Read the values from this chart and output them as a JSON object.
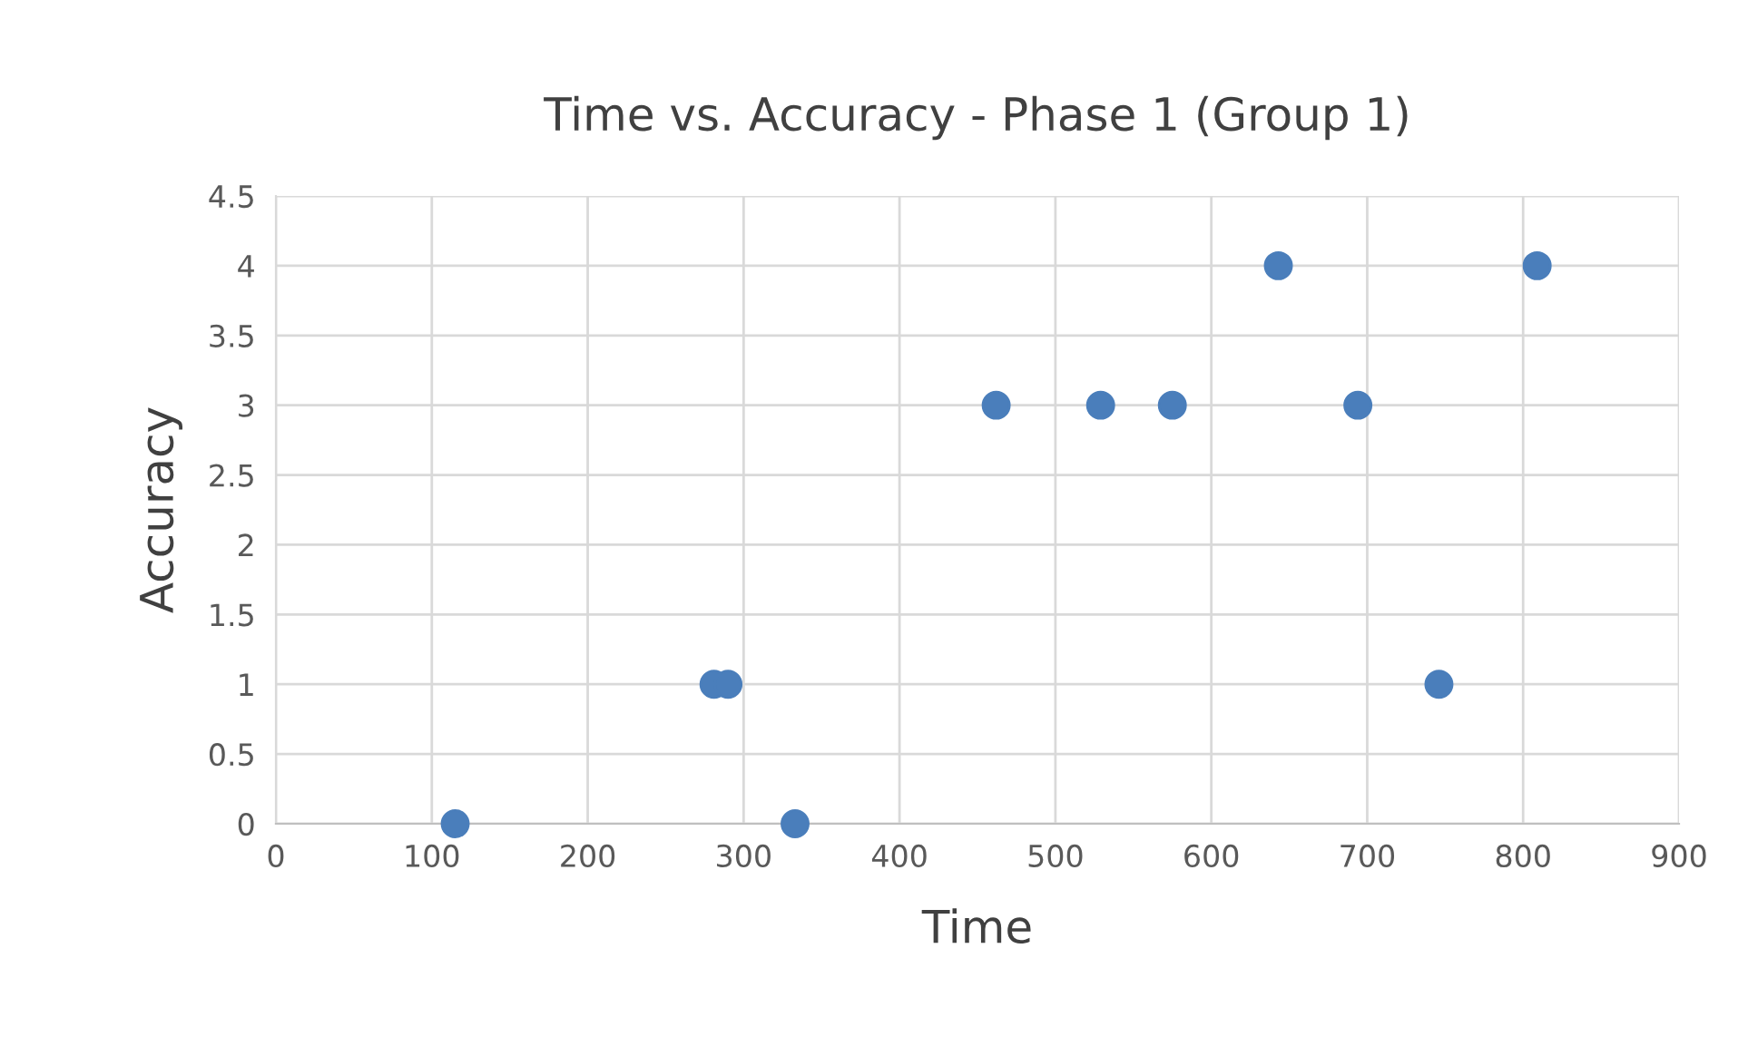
{
  "chart_data": {
    "type": "scatter",
    "title": "Time vs. Accuracy - Phase 1 (Group 1)",
    "xlabel": "Time",
    "ylabel": "Accuracy",
    "x": [
      115,
      281,
      290,
      333,
      462,
      529,
      575,
      643,
      694,
      746,
      809
    ],
    "series": [
      {
        "color": "#4a7ebb",
        "values": [
          0,
          1,
          1,
          0,
          3,
          3,
          3,
          4,
          3,
          1,
          4
        ]
      }
    ],
    "xlim": [
      0,
      900
    ],
    "xticks": [
      0,
      100,
      200,
      300,
      400,
      500,
      600,
      700,
      800,
      900
    ],
    "ylim": [
      0,
      4.5
    ],
    "yticks": [
      0,
      0.5,
      1,
      1.5,
      2,
      2.5,
      3,
      3.5,
      4,
      4.5
    ],
    "grid": true,
    "marker": "circle"
  }
}
